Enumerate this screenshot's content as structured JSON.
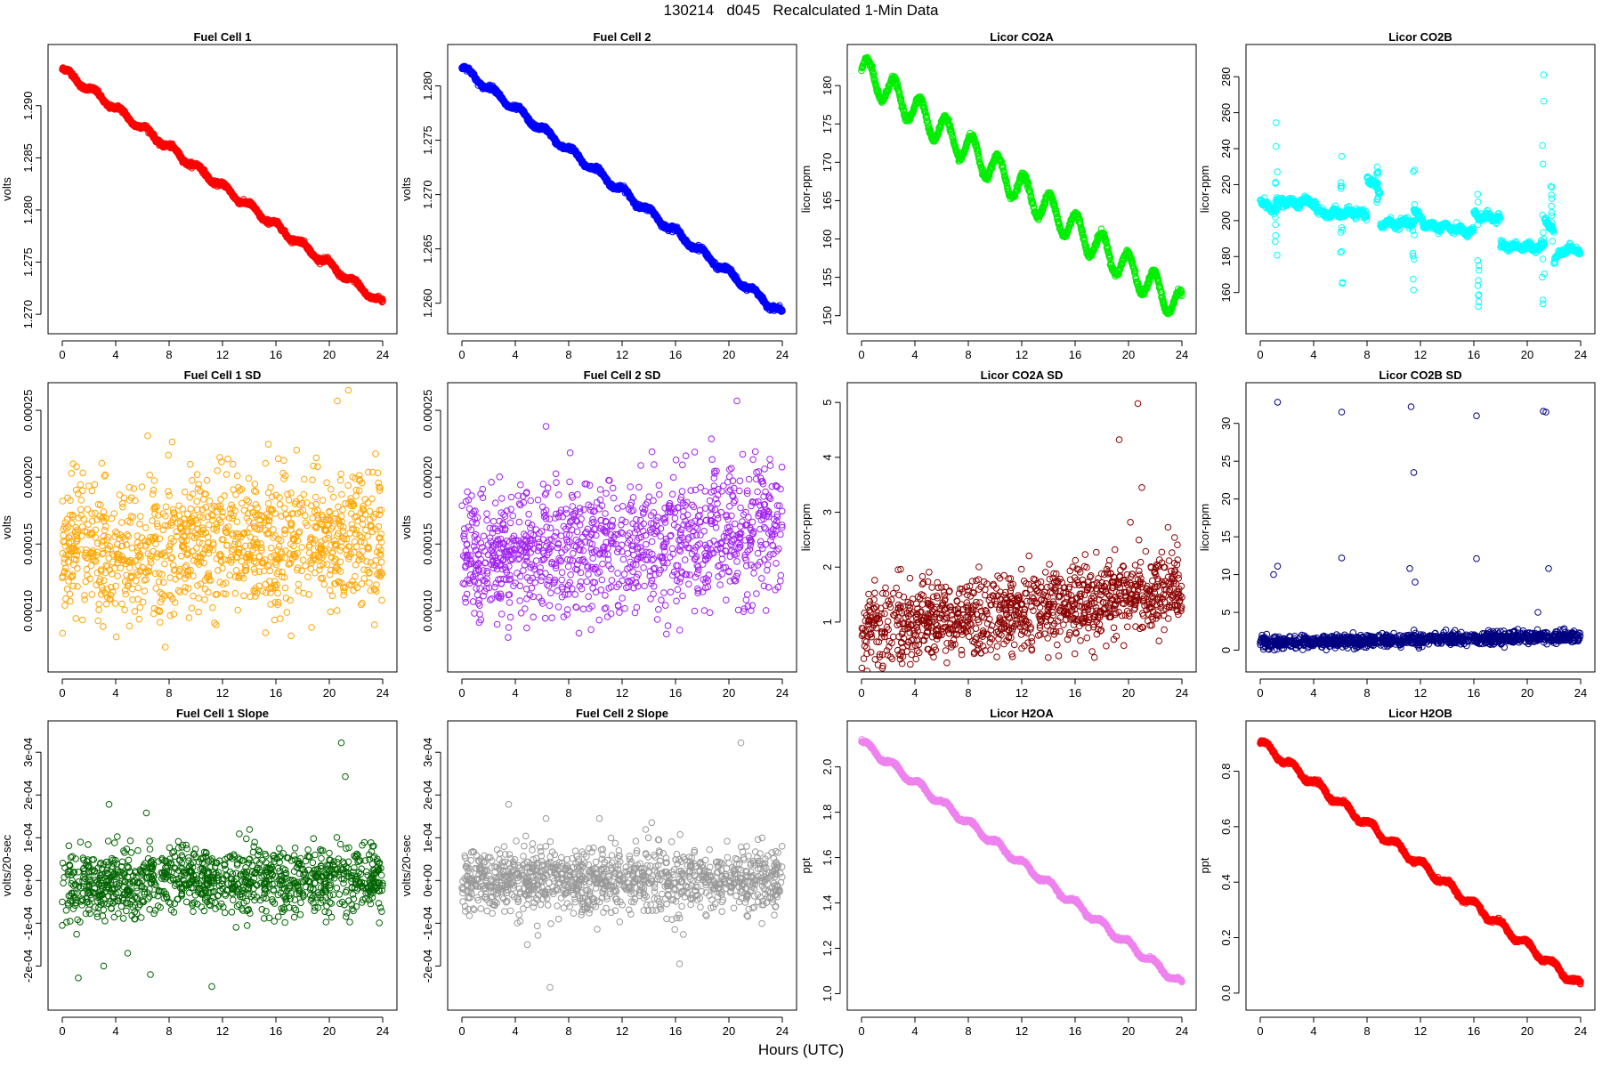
{
  "figure": {
    "title": "130214   d045   Recalculated 1-Min Data",
    "xlabel": "Hours (UTC)"
  },
  "chart_data": [
    {
      "type": "scatter",
      "title": "Fuel Cell 1",
      "ylabel": "volts",
      "color": "#ff0000",
      "xlim": [
        0,
        24
      ],
      "ylim": [
        1.2695,
        1.2945
      ],
      "xticks": [
        "0",
        "4",
        "8",
        "12",
        "16",
        "20",
        "24"
      ],
      "yticks": [
        "1.270",
        "1.275",
        "1.280",
        "1.285",
        "1.290"
      ],
      "gen": {
        "kind": "trend",
        "start": 1.2935,
        "end": 1.271,
        "wave": 0.0003,
        "noise": 0.0001,
        "density": "high"
      }
    },
    {
      "type": "scatter",
      "title": "Fuel Cell 2",
      "ylabel": "volts",
      "color": "#0000ff",
      "xlim": [
        0,
        24
      ],
      "ylim": [
        1.2585,
        1.2825
      ],
      "xticks": [
        "0",
        "4",
        "8",
        "12",
        "16",
        "20",
        "24"
      ],
      "yticks": [
        "1.260",
        "1.265",
        "1.270",
        "1.275",
        "1.280"
      ],
      "gen": {
        "kind": "trend",
        "start": 1.2817,
        "end": 1.259,
        "wave": 0.0003,
        "noise": 0.0001,
        "density": "high"
      }
    },
    {
      "type": "scatter",
      "title": "Licor CO2A",
      "ylabel": "licor-ppm",
      "color": "#00ee00",
      "xlim": [
        0,
        24
      ],
      "ylim": [
        149.5,
        183.5
      ],
      "xticks": [
        "0",
        "4",
        "8",
        "12",
        "16",
        "20",
        "24"
      ],
      "yticks": [
        "150",
        "155",
        "160",
        "165",
        "170",
        "175",
        "180"
      ],
      "gen": {
        "kind": "trend",
        "start": 182,
        "end": 151,
        "wave": 2.0,
        "noise": 0.2,
        "density": "high"
      }
    },
    {
      "type": "scatter",
      "title": "Licor CO2B",
      "ylabel": "licor-ppm",
      "color": "#00ffff",
      "xlim": [
        0,
        24
      ],
      "ylim": [
        145,
        290
      ],
      "xticks": [
        "0",
        "4",
        "8",
        "12",
        "16",
        "20",
        "24"
      ],
      "yticks": [
        "160",
        "180",
        "200",
        "220",
        "240",
        "260",
        "280"
      ],
      "gen": {
        "kind": "segments",
        "noise": 1.0,
        "density": "medium",
        "segments": [
          [
            0,
            1.2,
            210,
            206
          ],
          [
            1.2,
            1.6,
            210,
            210
          ],
          [
            1.6,
            3.0,
            211,
            209
          ],
          [
            3.0,
            4.2,
            211,
            210
          ],
          [
            4.2,
            5.5,
            205,
            203
          ],
          [
            5.5,
            6.5,
            205,
            203
          ],
          [
            6.5,
            8.0,
            205,
            203
          ],
          [
            8.0,
            9.0,
            225,
            215
          ],
          [
            9.0,
            9.8,
            198,
            199
          ],
          [
            9.8,
            11.5,
            198,
            199
          ],
          [
            11.5,
            12.2,
            205,
            200
          ],
          [
            12.2,
            13.5,
            198,
            196
          ],
          [
            13.5,
            16.0,
            197,
            193
          ],
          [
            16.0,
            17.2,
            203,
            202
          ],
          [
            17.2,
            18.0,
            202,
            201
          ],
          [
            18.0,
            20.7,
            186,
            185
          ],
          [
            20.7,
            21.3,
            186,
            186
          ],
          [
            21.3,
            22.0,
            200,
            195
          ],
          [
            22.0,
            22.8,
            178,
            184
          ],
          [
            22.8,
            24.0,
            184,
            184
          ]
        ],
        "spikes": [
          [
            1.2,
            175,
            255
          ],
          [
            6.1,
            165,
            245
          ],
          [
            8.8,
            210,
            232
          ],
          [
            11.5,
            160,
            243
          ],
          [
            16.3,
            152,
            230
          ],
          [
            21.2,
            148,
            287
          ],
          [
            21.8,
            185,
            220
          ]
        ]
      }
    },
    {
      "type": "scatter",
      "title": "Fuel Cell 1 SD",
      "ylabel": "volts",
      "color": "#ffa500",
      "xlim": [
        0,
        24
      ],
      "ylim": [
        6.5e-05,
        0.00026
      ],
      "xticks": [
        "0",
        "4",
        "8",
        "12",
        "16",
        "20",
        "24"
      ],
      "yticks": [
        "0.00010",
        "0.00015",
        "0.00020",
        "0.00025"
      ],
      "gen": {
        "kind": "noise",
        "start": 0.00014,
        "end": 0.00016,
        "spread": 2.5e-05,
        "outliers": [
          [
            20.6,
            0.000257
          ],
          [
            6.4,
            0.000231
          ]
        ],
        "density": "medium"
      }
    },
    {
      "type": "scatter",
      "title": "Fuel Cell 2 SD",
      "ylabel": "volts",
      "color": "#a020f0",
      "xlim": [
        0,
        24
      ],
      "ylim": [
        6.5e-05,
        0.00026
      ],
      "xticks": [
        "0",
        "4",
        "8",
        "12",
        "16",
        "20",
        "24"
      ],
      "yticks": [
        "0.00010",
        "0.00015",
        "0.00020",
        "0.00025"
      ],
      "gen": {
        "kind": "noise",
        "start": 0.00014,
        "end": 0.00016,
        "spread": 2.5e-05,
        "outliers": [
          [
            20.6,
            0.000257
          ],
          [
            6.3,
            0.000238
          ]
        ],
        "density": "medium"
      }
    },
    {
      "type": "scatter",
      "title": "Licor CO2A SD",
      "ylabel": "licor-ppm",
      "color": "#8b0000",
      "xlim": [
        0,
        24
      ],
      "ylim": [
        0.35,
        5.1
      ],
      "xticks": [
        "0",
        "4",
        "8",
        "12",
        "16",
        "20",
        "24"
      ],
      "yticks": [
        "1",
        "2",
        "3",
        "4",
        "5"
      ],
      "gen": {
        "kind": "noise",
        "start": 0.85,
        "end": 1.6,
        "spread": 0.35,
        "outliers": [
          [
            20.7,
            4.98
          ],
          [
            19.3,
            4.32
          ],
          [
            21.0,
            3.45
          ]
        ],
        "density": "medium"
      }
    },
    {
      "type": "scatter",
      "title": "Licor CO2B SD",
      "ylabel": "licor-ppm",
      "color": "#000080",
      "xlim": [
        0,
        24
      ],
      "ylim": [
        -1,
        33.5
      ],
      "xticks": [
        "0",
        "4",
        "8",
        "12",
        "16",
        "20",
        "24"
      ],
      "yticks": [
        "0",
        "5",
        "10",
        "15",
        "20",
        "25",
        "30"
      ],
      "gen": {
        "kind": "noise",
        "start": 1.0,
        "end": 1.8,
        "spread": 0.4,
        "outliers": [
          [
            1.3,
            32.8
          ],
          [
            1.0,
            10.0
          ],
          [
            1.3,
            11.1
          ],
          [
            6.1,
            31.5
          ],
          [
            6.1,
            12.2
          ],
          [
            11.3,
            32.2
          ],
          [
            11.5,
            23.5
          ],
          [
            11.2,
            10.8
          ],
          [
            11.6,
            9.0
          ],
          [
            16.2,
            31.0
          ],
          [
            16.2,
            12.1
          ],
          [
            21.2,
            31.6
          ],
          [
            21.4,
            31.5
          ],
          [
            21.6,
            10.8
          ],
          [
            20.8,
            5.0
          ]
        ],
        "density": "medium"
      }
    },
    {
      "type": "scatter",
      "title": "Fuel Cell 1 Slope",
      "ylabel": "volts/20-sec",
      "color": "#006400",
      "xlim": [
        0,
        24
      ],
      "ylim": [
        -0.00027,
        0.00034
      ],
      "xticks": [
        "0",
        "4",
        "8",
        "12",
        "16",
        "20",
        "24"
      ],
      "yticks": [
        "-2e-04",
        "-1e-04",
        "0e+00",
        "1e-04",
        "2e-04",
        "3e-04"
      ],
      "gen": {
        "kind": "noise",
        "start": -5e-06,
        "end": 0.0,
        "spread": 4e-05,
        "outliers": [
          [
            20.9,
            0.000322
          ],
          [
            21.2,
            0.000243
          ],
          [
            3.5,
            0.000178
          ],
          [
            6.3,
            0.000158
          ],
          [
            1.2,
            -0.000228
          ],
          [
            11.2,
            -0.000248
          ],
          [
            6.6,
            -0.00022
          ],
          [
            3.1,
            -0.0002
          ],
          [
            4.9,
            -0.00017
          ]
        ],
        "density": "medium"
      }
    },
    {
      "type": "scatter",
      "title": "Fuel Cell 2 Slope",
      "ylabel": "volts/20-sec",
      "color": "#999999",
      "xlim": [
        0,
        24
      ],
      "ylim": [
        -0.00027,
        0.00034
      ],
      "xticks": [
        "0",
        "4",
        "8",
        "12",
        "16",
        "20",
        "24"
      ],
      "yticks": [
        "-2e-04",
        "-1e-04",
        "0e+00",
        "1e-04",
        "2e-04",
        "3e-04"
      ],
      "gen": {
        "kind": "noise",
        "start": 0.0,
        "end": 0.0,
        "spread": 3.8e-05,
        "outliers": [
          [
            20.9,
            0.000322
          ],
          [
            3.5,
            0.000178
          ],
          [
            6.3,
            0.000145
          ],
          [
            10.3,
            0.000145
          ],
          [
            6.6,
            -0.00025
          ],
          [
            16.3,
            -0.000195
          ],
          [
            4.9,
            -0.00015
          ]
        ],
        "density": "medium"
      }
    },
    {
      "type": "scatter",
      "title": "Licor H2OA",
      "ylabel": "ppt",
      "color": "#ee82ee",
      "xlim": [
        0,
        24
      ],
      "ylim": [
        0.99,
        2.14
      ],
      "xticks": [
        "0",
        "4",
        "8",
        "12",
        "16",
        "20",
        "24"
      ],
      "yticks": [
        "1.0",
        "1.2",
        "1.4",
        "1.6",
        "1.8",
        "2.0"
      ],
      "gen": {
        "kind": "trend",
        "start": 2.11,
        "end": 1.04,
        "wave": 0.015,
        "noise": 0.003,
        "density": "high"
      }
    },
    {
      "type": "scatter",
      "title": "Licor H2OB",
      "ylabel": "ppt",
      "color": "#ff0000",
      "xlim": [
        0,
        24
      ],
      "ylim": [
        -0.01,
        0.93
      ],
      "xticks": [
        "0",
        "4",
        "8",
        "12",
        "16",
        "20",
        "24"
      ],
      "yticks": [
        "0.0",
        "0.2",
        "0.4",
        "0.6",
        "0.8"
      ],
      "gen": {
        "kind": "trend",
        "start": 0.905,
        "end": 0.025,
        "wave": 0.014,
        "noise": 0.003,
        "density": "high"
      }
    }
  ]
}
